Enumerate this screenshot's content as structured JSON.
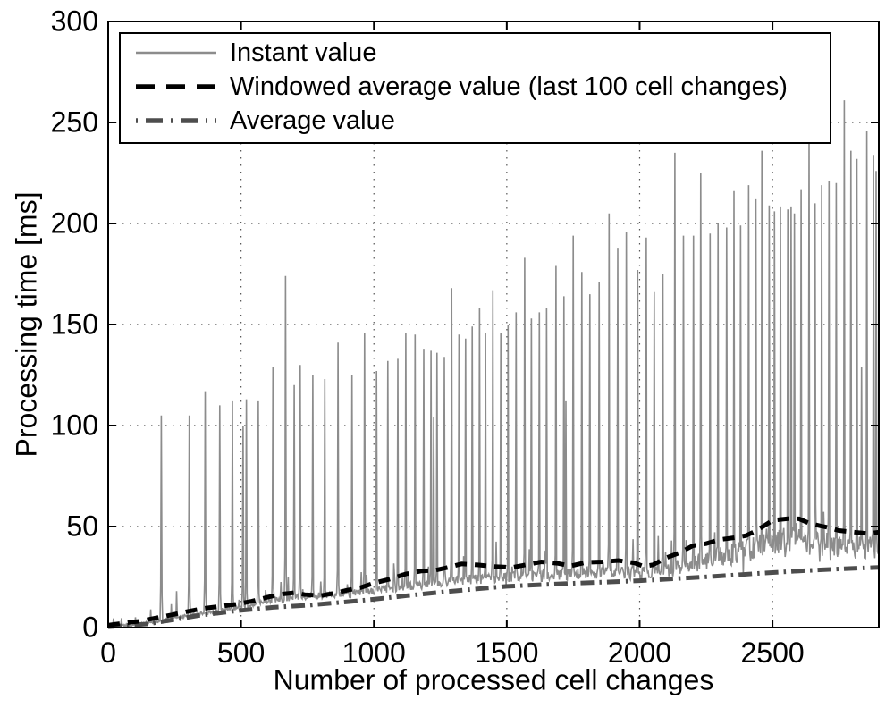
{
  "chart_data": {
    "type": "line",
    "title": "",
    "xlabel": "Number of processed cell changes",
    "ylabel": "Processing time [ms]",
    "xlim": [
      0,
      2900
    ],
    "ylim": [
      0,
      300
    ],
    "x_ticks": [
      0,
      500,
      1000,
      1500,
      2000,
      2500
    ],
    "y_ticks": [
      0,
      50,
      100,
      150,
      200,
      250,
      300
    ],
    "grid": "dotted",
    "legend_position": "top-left",
    "colors": {
      "instant": "#8c8c8c",
      "windowed": "#000000",
      "average": "#4d4d4d",
      "grid": "#555555",
      "axis": "#000000"
    },
    "series": [
      {
        "name": "Instant value",
        "style": "solid",
        "color": "#8c8c8c",
        "line_width": 1.6,
        "description": "noisy per-change processing time with periodic tall spikes",
        "baseline_trend": [
          [
            0,
            0.8
          ],
          [
            100,
            1.2
          ],
          [
            150,
            2.2
          ],
          [
            200,
            3.5
          ],
          [
            250,
            4.8
          ],
          [
            300,
            6
          ],
          [
            350,
            7
          ],
          [
            400,
            8
          ],
          [
            450,
            9
          ],
          [
            500,
            10
          ],
          [
            550,
            11.5
          ],
          [
            600,
            13
          ],
          [
            650,
            14
          ],
          [
            700,
            15
          ],
          [
            750,
            15.5
          ],
          [
            800,
            16
          ],
          [
            850,
            16.5
          ],
          [
            900,
            17
          ],
          [
            950,
            17.5
          ],
          [
            1000,
            18.5
          ],
          [
            1100,
            20
          ],
          [
            1200,
            21.5
          ],
          [
            1300,
            23
          ],
          [
            1400,
            24
          ],
          [
            1500,
            25
          ],
          [
            1600,
            25.5
          ],
          [
            1700,
            26
          ],
          [
            1800,
            27
          ],
          [
            1900,
            27.5
          ],
          [
            2000,
            26.5
          ],
          [
            2060,
            27
          ],
          [
            2100,
            28
          ],
          [
            2150,
            30
          ],
          [
            2200,
            32
          ],
          [
            2250,
            33.5
          ],
          [
            2300,
            35
          ],
          [
            2350,
            36.5
          ],
          [
            2400,
            38
          ],
          [
            2450,
            40
          ],
          [
            2500,
            42
          ],
          [
            2550,
            43.5
          ],
          [
            2600,
            42.5
          ],
          [
            2650,
            41.5
          ],
          [
            2700,
            41
          ],
          [
            2750,
            40.5
          ],
          [
            2800,
            40
          ],
          [
            2850,
            39.5
          ],
          [
            2900,
            40
          ]
        ],
        "noise_profile": [
          [
            0,
            0.5
          ],
          [
            300,
            0.9
          ],
          [
            600,
            1.4
          ],
          [
            900,
            1.8
          ],
          [
            1200,
            2.2
          ],
          [
            1500,
            2.6
          ],
          [
            1800,
            3
          ],
          [
            2100,
            3.6
          ],
          [
            2300,
            5
          ],
          [
            2500,
            6.5
          ],
          [
            2700,
            6
          ],
          [
            2900,
            5.5
          ]
        ],
        "spikes": [
          [
            160,
            9
          ],
          [
            200,
            105
          ],
          [
            257,
            18
          ],
          [
            305,
            105
          ],
          [
            365,
            117
          ],
          [
            421,
            110
          ],
          [
            468,
            112
          ],
          [
            508,
            100
          ],
          [
            520,
            113
          ],
          [
            565,
            112
          ],
          [
            621,
            129
          ],
          [
            668,
            174
          ],
          [
            700,
            120
          ],
          [
            722,
            130
          ],
          [
            769,
            125
          ],
          [
            816,
            123
          ],
          [
            864,
            141
          ],
          [
            917,
            125
          ],
          [
            964,
            146
          ],
          [
            1011,
            127
          ],
          [
            1053,
            132
          ],
          [
            1089,
            133
          ],
          [
            1121,
            146
          ],
          [
            1155,
            145
          ],
          [
            1188,
            138
          ],
          [
            1214,
            137
          ],
          [
            1225,
            104
          ],
          [
            1238,
            136
          ],
          [
            1266,
            134
          ],
          [
            1292,
            168
          ],
          [
            1320,
            145
          ],
          [
            1345,
            143
          ],
          [
            1371,
            149
          ],
          [
            1398,
            158
          ],
          [
            1421,
            146
          ],
          [
            1448,
            167
          ],
          [
            1477,
            146
          ],
          [
            1505,
            150
          ],
          [
            1536,
            156
          ],
          [
            1567,
            183
          ],
          [
            1593,
            153
          ],
          [
            1623,
            156
          ],
          [
            1650,
            158
          ],
          [
            1686,
            179
          ],
          [
            1715,
            164
          ],
          [
            1723,
            112
          ],
          [
            1751,
            194
          ],
          [
            1782,
            176
          ],
          [
            1813,
            165
          ],
          [
            1847,
            171
          ],
          [
            1885,
            205
          ],
          [
            1917,
            188
          ],
          [
            1949,
            196
          ],
          [
            1992,
            177
          ],
          [
            2024,
            193
          ],
          [
            2055,
            166
          ],
          [
            2088,
            175
          ],
          [
            2133,
            235
          ],
          [
            2165,
            194
          ],
          [
            2202,
            194
          ],
          [
            2230,
            225
          ],
          [
            2266,
            195
          ],
          [
            2296,
            200
          ],
          [
            2327,
            198
          ],
          [
            2354,
            216
          ],
          [
            2381,
            199
          ],
          [
            2409,
            219
          ],
          [
            2437,
            212
          ],
          [
            2460,
            236
          ],
          [
            2488,
            209
          ],
          [
            2508,
            206
          ],
          [
            2530,
            208
          ],
          [
            2557,
            207
          ],
          [
            2570,
            208
          ],
          [
            2583,
            205
          ],
          [
            2608,
            217
          ],
          [
            2637,
            240
          ],
          [
            2659,
            210
          ],
          [
            2686,
            219
          ],
          [
            2713,
            221
          ],
          [
            2739,
            220
          ],
          [
            2769,
            261
          ],
          [
            2794,
            236
          ],
          [
            2818,
            232
          ],
          [
            2835,
            129
          ],
          [
            2856,
            246
          ],
          [
            2879,
            234
          ],
          [
            2890,
            226
          ]
        ]
      },
      {
        "name": "Windowed average value (last 100 cell changes)",
        "style": "dashed",
        "color": "#000000",
        "line_width": 5,
        "points": [
          [
            0,
            1.2
          ],
          [
            60,
            2.2
          ],
          [
            120,
            3.2
          ],
          [
            180,
            4.8
          ],
          [
            240,
            6.3
          ],
          [
            300,
            8
          ],
          [
            360,
            9.5
          ],
          [
            420,
            10.5
          ],
          [
            480,
            11.5
          ],
          [
            540,
            13
          ],
          [
            600,
            15
          ],
          [
            650,
            16.5
          ],
          [
            700,
            17.2
          ],
          [
            740,
            16.3
          ],
          [
            800,
            15.8
          ],
          [
            850,
            17
          ],
          [
            900,
            18.5
          ],
          [
            950,
            19.8
          ],
          [
            1000,
            22
          ],
          [
            1060,
            24
          ],
          [
            1120,
            26.5
          ],
          [
            1180,
            28
          ],
          [
            1230,
            28.3
          ],
          [
            1270,
            29.5
          ],
          [
            1330,
            31.5
          ],
          [
            1390,
            31
          ],
          [
            1450,
            30.2
          ],
          [
            1520,
            29.8
          ],
          [
            1570,
            31
          ],
          [
            1630,
            32.5
          ],
          [
            1690,
            31.8
          ],
          [
            1740,
            30.5
          ],
          [
            1800,
            32.3
          ],
          [
            1860,
            32.5
          ],
          [
            1920,
            33.2
          ],
          [
            1980,
            32
          ],
          [
            2015,
            30.3
          ],
          [
            2050,
            31
          ],
          [
            2100,
            34.5
          ],
          [
            2150,
            37
          ],
          [
            2200,
            40.5
          ],
          [
            2250,
            41.5
          ],
          [
            2300,
            43.5
          ],
          [
            2360,
            44.5
          ],
          [
            2400,
            45.5
          ],
          [
            2440,
            48
          ],
          [
            2470,
            50.5
          ],
          [
            2500,
            53
          ],
          [
            2530,
            53.5
          ],
          [
            2565,
            54
          ],
          [
            2600,
            53.8
          ],
          [
            2640,
            51.5
          ],
          [
            2680,
            50.3
          ],
          [
            2710,
            49.5
          ],
          [
            2750,
            48
          ],
          [
            2800,
            47.3
          ],
          [
            2860,
            46.5
          ],
          [
            2900,
            47.2
          ]
        ]
      },
      {
        "name": "Average value",
        "style": "dash-dot",
        "color": "#4d4d4d",
        "line_width": 5,
        "points": [
          [
            0,
            0.4
          ],
          [
            150,
            1.8
          ],
          [
            250,
            4
          ],
          [
            350,
            6.2
          ],
          [
            500,
            8.5
          ],
          [
            620,
            10
          ],
          [
            750,
            11
          ],
          [
            875,
            12.5
          ],
          [
            1000,
            14
          ],
          [
            1125,
            15.8
          ],
          [
            1250,
            17.5
          ],
          [
            1375,
            19
          ],
          [
            1500,
            20.4
          ],
          [
            1625,
            21.2
          ],
          [
            1750,
            21.9
          ],
          [
            1875,
            22.5
          ],
          [
            2000,
            23.2
          ],
          [
            2150,
            24.3
          ],
          [
            2300,
            25.5
          ],
          [
            2450,
            26.8
          ],
          [
            2600,
            28
          ],
          [
            2750,
            29
          ],
          [
            2900,
            29.8
          ]
        ]
      }
    ]
  }
}
